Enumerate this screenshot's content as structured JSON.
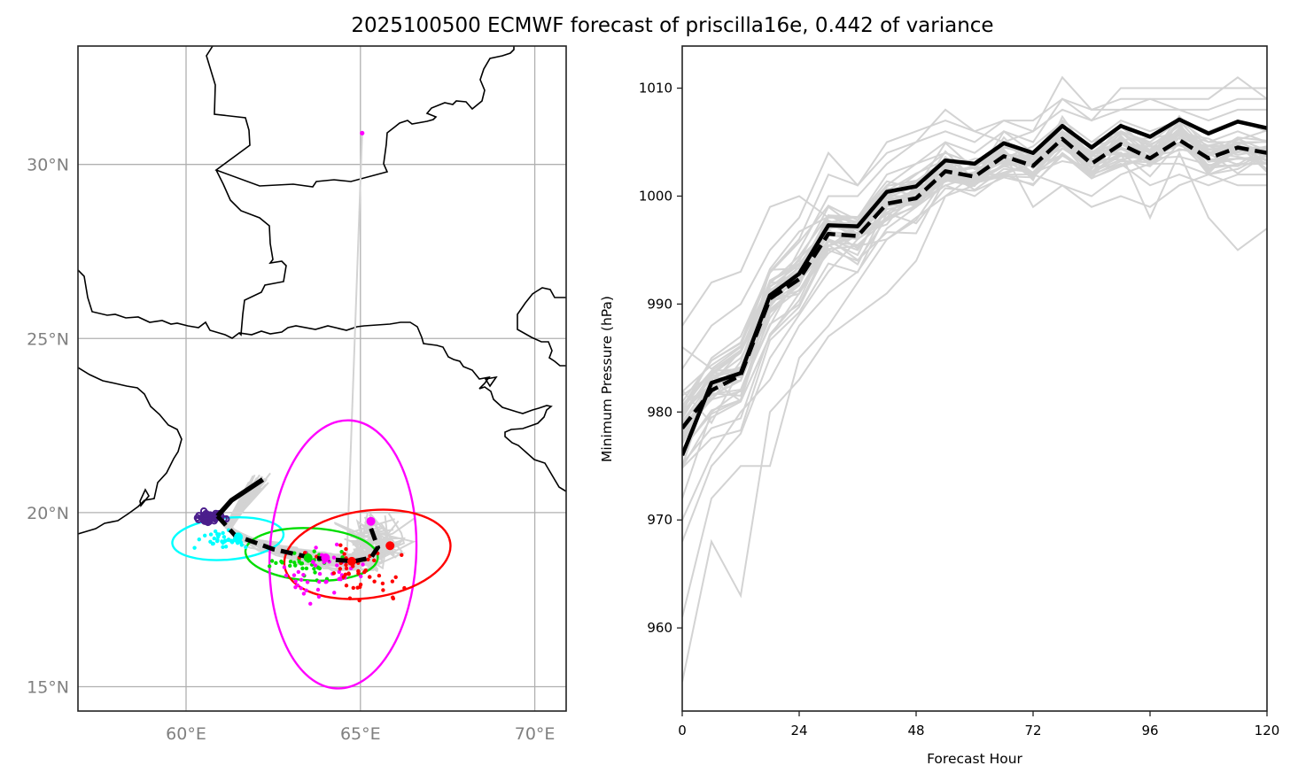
{
  "title": "2025100500 ECMWF forecast of priscilla16e, 0.442 of variance",
  "chart_data": [
    {
      "type": "map-track",
      "name": "track-map",
      "lon_range": [
        56.9,
        70.9
      ],
      "lat_range": [
        14.3,
        33.4
      ],
      "xticks": [
        60,
        65,
        70
      ],
      "xtick_labels": [
        "60°E",
        "65°E",
        "70°E"
      ],
      "yticks": [
        15,
        20,
        25,
        30
      ],
      "ytick_labels": [
        "15°N",
        "20°N",
        "25°N",
        "30°N"
      ],
      "grid": true,
      "colors": {
        "ensemble_track": "#d3d3d3",
        "coastline": "#000000",
        "gridline": "#b0b0b0",
        "day1": "#4b1e8c",
        "day2": "#00ffff",
        "day3": "#00dd00",
        "day4": "#ff00ff",
        "day5": "#ff0000",
        "mean_track": "#000000"
      },
      "deterministic_track": [
        [
          62.2,
          20.95
        ],
        [
          61.3,
          20.35
        ],
        [
          60.9,
          19.9
        ]
      ],
      "mean_track": [
        [
          60.9,
          19.9
        ],
        [
          61.4,
          19.35
        ],
        [
          62.5,
          18.95
        ],
        [
          63.6,
          18.7
        ],
        [
          64.8,
          18.6
        ],
        [
          65.3,
          18.7
        ],
        [
          65.5,
          19.0
        ],
        [
          65.3,
          19.55
        ]
      ],
      "ellipses": [
        {
          "name": "day2",
          "center": [
            61.2,
            19.25
          ],
          "rx_deg": 1.6,
          "ry_deg": 0.6,
          "rotation": -5
        },
        {
          "name": "day3",
          "center": [
            63.6,
            18.8
          ],
          "rx_deg": 1.9,
          "ry_deg": 0.75,
          "rotation": 3
        },
        {
          "name": "day4",
          "center": [
            64.5,
            18.8
          ],
          "rx_deg": 2.1,
          "ry_deg": 3.85,
          "rotation": 3
        },
        {
          "name": "day5",
          "center": [
            65.2,
            18.8
          ],
          "rx_deg": 2.4,
          "ry_deg": 1.25,
          "rotation": -8
        }
      ],
      "stray_member_endpoint": [
        65.05,
        30.9
      ]
    },
    {
      "type": "line",
      "name": "pressure-chart",
      "xlabel": "Forecast Hour",
      "ylabel": "Minimum Pressure (hPa)",
      "xlim": [
        0,
        120
      ],
      "ylim": [
        952.3,
        1013.9
      ],
      "xticks": [
        0,
        24,
        48,
        72,
        96,
        120
      ],
      "yticks": [
        960,
        970,
        980,
        990,
        1000,
        1010
      ],
      "x": [
        0,
        6,
        12,
        18,
        24,
        30,
        36,
        42,
        48,
        54,
        60,
        66,
        72,
        78,
        84,
        90,
        96,
        102,
        108,
        114,
        120
      ],
      "series": [
        {
          "name": "deterministic",
          "style": "solid",
          "color": "#000000",
          "values": [
            976.0,
            982.7,
            983.6,
            990.8,
            992.8,
            997.3,
            997.2,
            1000.4,
            1000.9,
            1003.3,
            1003.0,
            1004.9,
            1004.0,
            1006.5,
            1004.5,
            1006.5,
            1005.5,
            1007.1,
            1005.8,
            1006.9,
            1006.3
          ]
        },
        {
          "name": "ensemble-mean",
          "style": "dashed",
          "color": "#000000",
          "values": [
            978.5,
            982.0,
            983.4,
            990.5,
            992.3,
            996.5,
            996.3,
            999.3,
            999.8,
            1002.3,
            1001.8,
            1003.7,
            1002.8,
            1005.3,
            1003.0,
            1004.8,
            1003.5,
            1005.2,
            1003.5,
            1004.5,
            1004.0
          ]
        },
        {
          "name": "member-01",
          "style": "thin",
          "color": "#d3d3d3",
          "values": [
            955.0,
            968.0,
            963.0,
            980.0,
            983.0,
            987.0,
            989.0,
            991.0,
            994.0,
            1000.0,
            1001.0,
            1003.0,
            1004.0,
            1006.0,
            1002.0,
            1004.0,
            998.0,
            1004.0,
            998.0,
            995.0,
            997.0
          ]
        },
        {
          "name": "member-02",
          "style": "thin",
          "color": "#d3d3d3",
          "values": [
            961.0,
            972.0,
            975.0,
            975.0,
            985.0,
            988.0,
            992.0,
            996.0,
            998.0,
            1000.0,
            1002.0,
            1002.0,
            1002.0,
            1001.0,
            1000.0,
            1002.0,
            1003.0,
            1003.0,
            1002.0,
            1001.0,
            1001.0
          ]
        },
        {
          "name": "member-03",
          "style": "thin",
          "color": "#d3d3d3",
          "values": [
            968.0,
            975.0,
            978.0,
            985.0,
            989.0,
            993.0,
            996.0,
            998.0,
            1001.0,
            1003.0,
            1003.0,
            1004.0,
            999.0,
            1001.0,
            999.0,
            1000.0,
            999.0,
            1001.0,
            1002.0,
            1003.0,
            1003.0
          ]
        },
        {
          "name": "member-04",
          "style": "thin",
          "color": "#d3d3d3",
          "values": [
            972.0,
            980.0,
            982.0,
            988.0,
            993.0,
            998.0,
            998.0,
            1001.0,
            1003.0,
            1005.0,
            1004.0,
            1006.0,
            1005.0,
            1009.0,
            1007.0,
            1010.0,
            1010.0,
            1010.0,
            1010.0,
            1010.0,
            1010.0
          ]
        },
        {
          "name": "member-05",
          "style": "thin",
          "color": "#d3d3d3",
          "values": [
            975.0,
            983.0,
            985.0,
            990.0,
            995.0,
            1000.0,
            1000.0,
            1003.0,
            1005.0,
            1006.0,
            1005.0,
            1007.0,
            1006.0,
            1011.0,
            1008.0,
            1009.0,
            1009.0,
            1009.0,
            1009.0,
            1011.0,
            1009.0
          ]
        },
        {
          "name": "member-06",
          "style": "thin",
          "color": "#d3d3d3",
          "values": [
            980.0,
            985.0,
            987.0,
            993.0,
            996.0,
            1002.0,
            1001.0,
            1004.0,
            1005.0,
            1008.0,
            1006.0,
            1007.0,
            1007.0,
            1009.0,
            1008.0,
            1008.0,
            1009.0,
            1008.0,
            1008.0,
            1009.0,
            1009.0
          ]
        },
        {
          "name": "member-07",
          "style": "thin",
          "color": "#d3d3d3",
          "values": [
            984.0,
            988.0,
            990.0,
            995.0,
            998.0,
            1004.0,
            1001.0,
            1005.0,
            1006.0,
            1007.0,
            1006.0,
            1005.0,
            1006.0,
            1008.0,
            1007.0,
            1008.0,
            1008.0,
            1008.0,
            1007.0,
            1008.0,
            1008.0
          ]
        },
        {
          "name": "member-08",
          "style": "thin",
          "color": "#d3d3d3",
          "values": [
            988.0,
            992.0,
            993.0,
            999.0,
            1000.0,
            998.0,
            998.0,
            1002.0,
            1003.0,
            1004.0,
            1003.0,
            1005.0,
            1003.0,
            1007.0,
            1005.0,
            1007.0,
            1006.0,
            1007.0,
            1006.0,
            1007.0,
            1006.0
          ]
        },
        {
          "name": "member-09",
          "style": "thin",
          "color": "#d3d3d3",
          "values": [
            978.0,
            983.0,
            981.0,
            987.0,
            991.0,
            995.0,
            994.0,
            998.0,
            999.0,
            1001.0,
            1000.0,
            1002.0,
            1001.0,
            1004.0,
            1002.0,
            1003.0,
            1001.0,
            1002.0,
            1001.0,
            1002.0,
            1002.0
          ]
        },
        {
          "name": "member-10",
          "style": "thin",
          "color": "#d3d3d3",
          "values": [
            982.0,
            979.0,
            984.0,
            992.0,
            994.0,
            999.0,
            997.0,
            1000.0,
            1002.0,
            1004.0,
            1003.0,
            1005.0,
            1004.0,
            1007.0,
            1005.0,
            1006.0,
            1005.0,
            1007.0,
            1005.0,
            1006.0,
            1005.0
          ]
        },
        {
          "name": "member-11",
          "style": "thin",
          "color": "#d3d3d3",
          "values": [
            970.0,
            976.0,
            980.0,
            983.0,
            988.0,
            991.0,
            993.0,
            997.0,
            999.0,
            1002.0,
            1001.0,
            1003.0,
            1003.0,
            1005.0,
            1004.0,
            1005.0,
            1004.0,
            1006.0,
            1005.0,
            1005.0,
            1005.0
          ]
        },
        {
          "name": "member-12",
          "style": "thin",
          "color": "#d3d3d3",
          "values": [
            986.0,
            984.0,
            986.0,
            990.0,
            992.0,
            996.0,
            995.0,
            999.0,
            1000.0,
            1002.0,
            1002.0,
            1004.0,
            1003.0,
            1006.0,
            1004.0,
            1006.0,
            1004.0,
            1006.0,
            1004.0,
            1005.0,
            1004.0
          ]
        }
      ]
    }
  ]
}
